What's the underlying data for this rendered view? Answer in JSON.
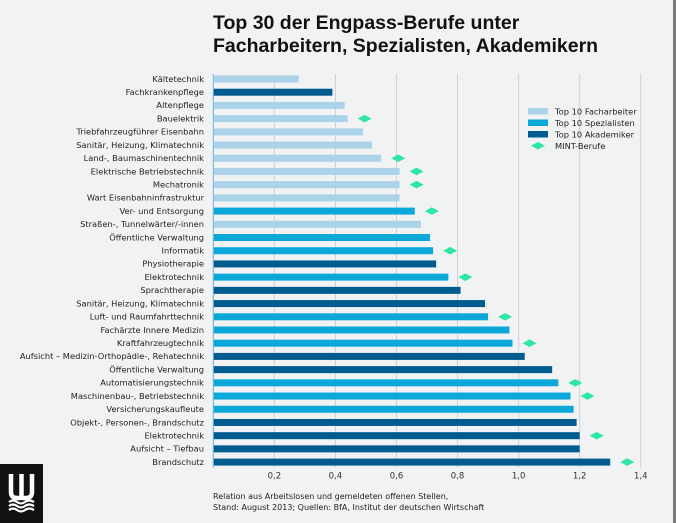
{
  "title_line1": "Top 30 der Engpass-Berufe unter",
  "title_line2": "Facharbeitern, Spezialisten, Akademikern",
  "footnote_line1": "Relation aus Arbeitslosen und gemeldeten offenen Stellen,",
  "footnote_line2": "Stand: August 2013; Quellen: BfA, Institut der deutschen Wirtschaft",
  "logo": {
    "icon": "wave-w-logo-icon"
  },
  "colors": {
    "Facharbeiter": "#aad3e9",
    "Spezialisten": "#0aa8d8",
    "Akademiker": "#005b8f",
    "MINT": "#2ee6a6",
    "grid": "#cfd0d2",
    "axis": "#6aafd6"
  },
  "chart_data": {
    "type": "bar",
    "orientation": "horizontal",
    "title": "Top 30 der Engpass-Berufe unter Facharbeitern, Spezialisten, Akademikern",
    "xlabel": "",
    "ylabel": "",
    "xlim": [
      0,
      1.4
    ],
    "xticks": [
      0.2,
      0.4,
      0.6,
      0.8,
      1.0,
      1.2,
      1.4
    ],
    "xtick_labels": [
      "0,2",
      "0,4",
      "0,6",
      "0,8",
      "1,0",
      "1,2",
      "1,4"
    ],
    "grid": true,
    "legend_position": "right",
    "legend": [
      {
        "label": "Top 10 Facharbeiter",
        "key": "Facharbeiter",
        "marker": "rect"
      },
      {
        "label": "Top 10 Spezialisten",
        "key": "Spezialisten",
        "marker": "rect"
      },
      {
        "label": "Top 10 Akademiker",
        "key": "Akademiker",
        "marker": "rect"
      },
      {
        "label": "MINT-Berufe",
        "key": "MINT",
        "marker": "diamond"
      }
    ],
    "bars": [
      {
        "label": "Kältetechnik",
        "value": 0.28,
        "group": "Facharbeiter",
        "mint": false
      },
      {
        "label": "Fachkrankenpflege",
        "value": 0.39,
        "group": "Akademiker",
        "mint": false
      },
      {
        "label": "Altenpflege",
        "value": 0.43,
        "group": "Facharbeiter",
        "mint": false
      },
      {
        "label": "Bauelektrik",
        "value": 0.44,
        "group": "Facharbeiter",
        "mint": true
      },
      {
        "label": "Triebfahrzeugführer Eisenbahn",
        "value": 0.49,
        "group": "Facharbeiter",
        "mint": false
      },
      {
        "label": "Sanitär, Heizung, Klimatechnik",
        "value": 0.52,
        "group": "Facharbeiter",
        "mint": false
      },
      {
        "label": "Land-, Baumaschinentechnik",
        "value": 0.55,
        "group": "Facharbeiter",
        "mint": true
      },
      {
        "label": "Elektrische Betriebstechnik",
        "value": 0.61,
        "group": "Facharbeiter",
        "mint": true
      },
      {
        "label": "Mechatronik",
        "value": 0.61,
        "group": "Facharbeiter",
        "mint": true
      },
      {
        "label": "Wart Eisenbahninfrastruktur",
        "value": 0.61,
        "group": "Facharbeiter",
        "mint": false
      },
      {
        "label": "Ver- und Entsorgung",
        "value": 0.66,
        "group": "Spezialisten",
        "mint": true
      },
      {
        "label": "Straßen-, Tunnelwärter/-innen",
        "value": 0.68,
        "group": "Facharbeiter",
        "mint": false
      },
      {
        "label": "Öffentliche Verwaltung",
        "value": 0.71,
        "group": "Spezialisten",
        "mint": false
      },
      {
        "label": "Informatik",
        "value": 0.72,
        "group": "Spezialisten",
        "mint": true
      },
      {
        "label": "Physiotherapie",
        "value": 0.73,
        "group": "Akademiker",
        "mint": false
      },
      {
        "label": "Elektrotechnik",
        "value": 0.77,
        "group": "Spezialisten",
        "mint": true
      },
      {
        "label": "Sprachtherapie",
        "value": 0.81,
        "group": "Akademiker",
        "mint": false
      },
      {
        "label": "Sanitär, Heizung, Klimatechnik",
        "value": 0.89,
        "group": "Akademiker",
        "mint": false
      },
      {
        "label": "Luft- und Raumfahrttechnik",
        "value": 0.9,
        "group": "Spezialisten",
        "mint": true
      },
      {
        "label": "Fachärzte Innere Medizin",
        "value": 0.97,
        "group": "Spezialisten",
        "mint": false
      },
      {
        "label": "Kraftfahrzeugtechnik",
        "value": 0.98,
        "group": "Spezialisten",
        "mint": true
      },
      {
        "label": "Aufsicht – Medizin-Orthopädie-, Rehatechnik",
        "value": 1.02,
        "group": "Akademiker",
        "mint": false
      },
      {
        "label": "Öffentliche Verwaltung",
        "value": 1.11,
        "group": "Akademiker",
        "mint": false
      },
      {
        "label": "Automatisierungstechnik",
        "value": 1.13,
        "group": "Spezialisten",
        "mint": true
      },
      {
        "label": "Maschinenbau-, Betriebstechnik",
        "value": 1.17,
        "group": "Spezialisten",
        "mint": true
      },
      {
        "label": "Versicherungskaufleute",
        "value": 1.18,
        "group": "Spezialisten",
        "mint": false
      },
      {
        "label": "Objekt-, Personen-, Brandschutz",
        "value": 1.19,
        "group": "Akademiker",
        "mint": false
      },
      {
        "label": "Elektrotechnik",
        "value": 1.2,
        "group": "Akademiker",
        "mint": true
      },
      {
        "label": "Aufsicht – Tiefbau",
        "value": 1.2,
        "group": "Akademiker",
        "mint": false
      },
      {
        "label": "Brandschutz",
        "value": 1.3,
        "group": "Akademiker",
        "mint": true
      }
    ]
  }
}
